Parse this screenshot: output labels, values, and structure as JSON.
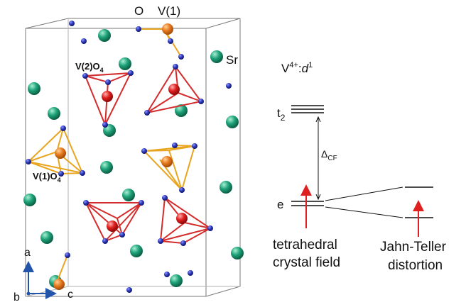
{
  "crystal": {
    "atom_labels": {
      "oxygen": "O",
      "v1": "V(1)",
      "strontium": "Sr"
    },
    "polyhedra": {
      "v2o4": {
        "base": "V(2)O",
        "sub": "4"
      },
      "v1o4": {
        "base": "V(1)O",
        "sub": "4"
      }
    },
    "axes": {
      "a": "a",
      "b": "b",
      "c": "c"
    },
    "colors": {
      "oxygen": "#2b35b5",
      "strontium": "#1fa37a",
      "v1": "#e87a1e",
      "v2": "#e01f1f",
      "v1_bonds": "#e8a520",
      "v2_bonds": "#d42c2c",
      "cell_edges": "#7a7a7a",
      "axes": "#2255aa"
    }
  },
  "energy_diagram": {
    "ion": {
      "base": "V",
      "charge": "4+",
      "sep": ":",
      "config_base": "d",
      "config_exp": "1"
    },
    "t2_level": {
      "base": "t",
      "sub": "2"
    },
    "e_level": "e",
    "gap": {
      "base": "Δ",
      "sub": "CF"
    },
    "tetrahedral_label": [
      "tetrahedral",
      "crystal field"
    ],
    "jahn_teller_label": [
      "Jahn-Teller",
      "distortion"
    ],
    "electron_color": "#e02020"
  }
}
